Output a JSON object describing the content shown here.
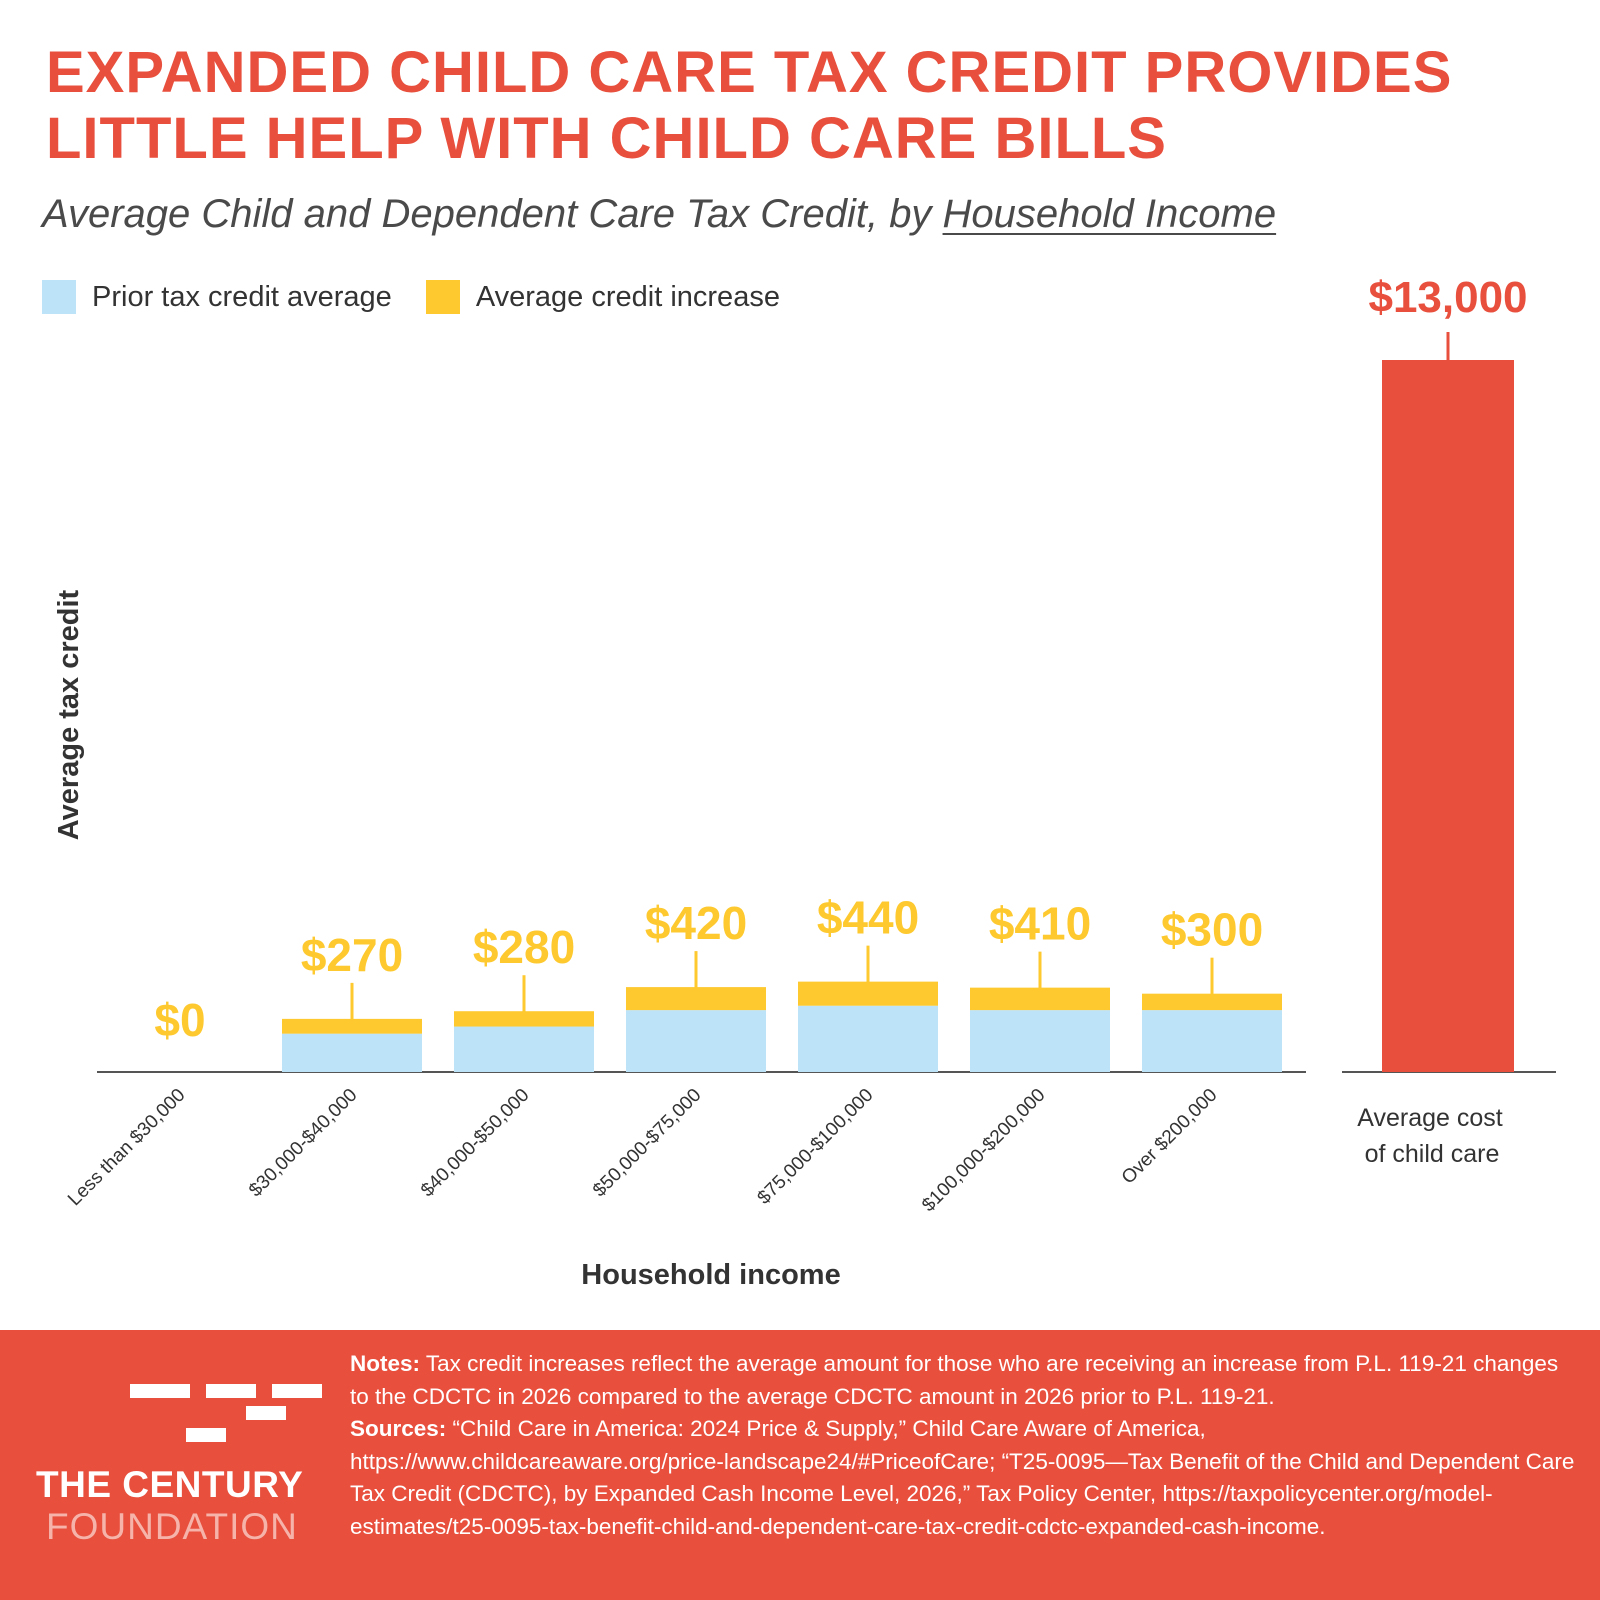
{
  "header": {
    "title_line1": "EXPANDED CHILD CARE TAX CREDIT PROVIDES",
    "title_line2": "LITTLE HELP WITH CHILD CARE BILLS",
    "subtitle_prefix": "Average Child and Dependent Care Tax Credit, by ",
    "subtitle_underlined": "Household Income"
  },
  "chart_data": {
    "type": "bar",
    "stacked": true,
    "categories": [
      "Less than $30,000",
      "$30,000-$40,000",
      "$40,000-$50,000",
      "$50,000-$75,000",
      "$75,000-$100,000",
      "$100,000-$200,000",
      "Over $200,000"
    ],
    "series": [
      {
        "name": "Prior tax credit average",
        "color": "#bde3f8",
        "values": [
          0,
          700,
          830,
          1130,
          1210,
          1130,
          1130
        ]
      },
      {
        "name": "Average credit increase",
        "color": "#fdc92f",
        "values": [
          0,
          270,
          280,
          420,
          440,
          410,
          300
        ]
      }
    ],
    "data_labels": [
      "$0",
      "$270",
      "$280",
      "$420",
      "$440",
      "$410",
      "$300"
    ],
    "comparison": {
      "label_line1": "Average cost",
      "label_line2": "of child care",
      "value": 13000,
      "value_label": "$13,000",
      "color": "#e84f3d"
    },
    "xlabel": "Household income",
    "ylabel": "Average tax credit",
    "ylim": [
      0,
      13000
    ],
    "grid": false,
    "legend": "top-left",
    "label_color": "#fdc92f",
    "axis_color": "#555555"
  },
  "footer": {
    "logo_line1": "THE CENTURY",
    "logo_line2": "FOUNDATION",
    "notes_label": "Notes:",
    "notes_text": " Tax credit increases reflect the average amount for those who are receiving an increase from P.L. 119-21 changes to the CDCTC in 2026 compared to the average CDCTC amount in 2026 prior to P.L. 119-21.",
    "sources_label": "Sources:",
    "sources_text": " “Child Care in America: 2024 Price & Supply,” Child Care Aware of America, https://www.childcareaware.org/price-landscape24/#PriceofCare; “T25-0095—Tax Benefit of the Child and Dependent Care Tax Credit (CDCTC), by Expanded Cash Income Level, 2026,” Tax Policy Center, https://taxpolicycenter.org/model-estimates/t25-0095-tax-benefit-child-and-dependent-care-tax-credit-cdctc-expanded-cash-income."
  }
}
